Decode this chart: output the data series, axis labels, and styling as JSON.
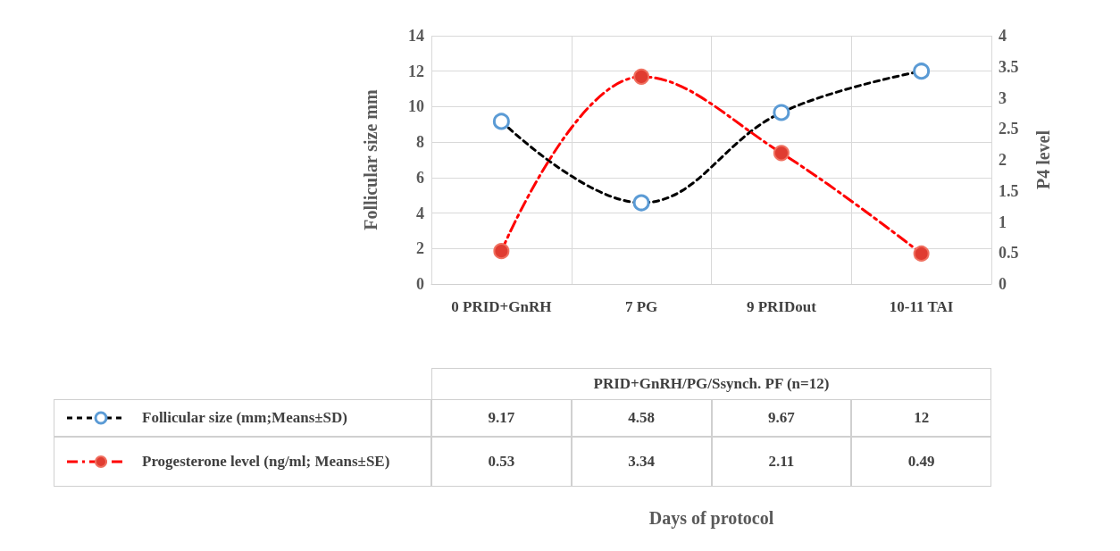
{
  "chart_data": {
    "type": "line",
    "categories": [
      "0 PRID+GnRH",
      "7 PG",
      "9 PRIDout",
      "10-11 TAI"
    ],
    "series": [
      {
        "name": "Follicular size (mm;Means±SD)",
        "color": "#000000",
        "values": [
          9.17,
          4.58,
          9.67,
          12
        ],
        "line_style": "dashed",
        "marker": "circle"
      },
      {
        "name": "Progesterone level (ng/ml; Means±SE)",
        "color": "#ff0000",
        "values": [
          0.53,
          3.34,
          2.11,
          0.49
        ],
        "axis": "y2",
        "line_style": "dashdot",
        "marker": "circle"
      }
    ],
    "ylabel": "Follicular size mm",
    "y2label": "P4 level",
    "annotations": [
      "PRID+GnRH/PG/Ssynch. PF (n=12)",
      "Days of protocol"
    ],
    "ylim": [
      0,
      14
    ],
    "yticks": [
      0,
      2,
      4,
      6,
      8,
      10,
      12,
      14
    ],
    "y2lim": [
      0,
      4
    ],
    "y2ticks": [
      0,
      0.5,
      1,
      1.5,
      2,
      2.5,
      3,
      3.5,
      4
    ],
    "grid": true,
    "legend": "bottom",
    "data_labels": true
  }
}
